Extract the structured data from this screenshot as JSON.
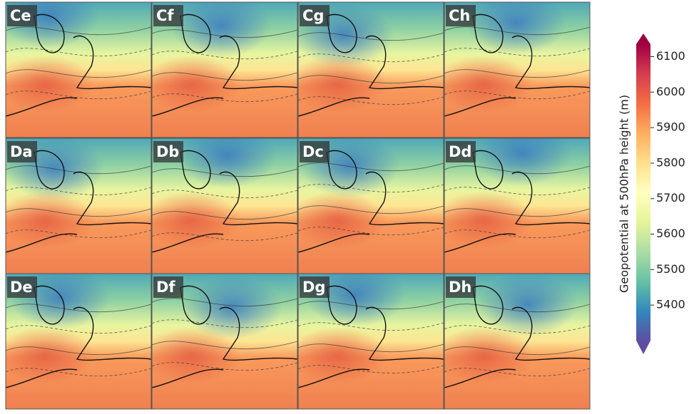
{
  "panels": [
    {
      "label": "Ce"
    },
    {
      "label": "Cf"
    },
    {
      "label": "Cg"
    },
    {
      "label": "Ch"
    },
    {
      "label": "Da"
    },
    {
      "label": "Db"
    },
    {
      "label": "Dc"
    },
    {
      "label": "Dd"
    },
    {
      "label": "De"
    },
    {
      "label": "Df"
    },
    {
      "label": "Dg"
    },
    {
      "label": "Dh"
    }
  ],
  "colorbar": {
    "label": "Geopotential at 500hPa height (m)",
    "lim": [
      5300,
      6135
    ],
    "ticks": [
      5400,
      5500,
      5600,
      5700,
      5800,
      5900,
      6000,
      6100
    ]
  }
}
